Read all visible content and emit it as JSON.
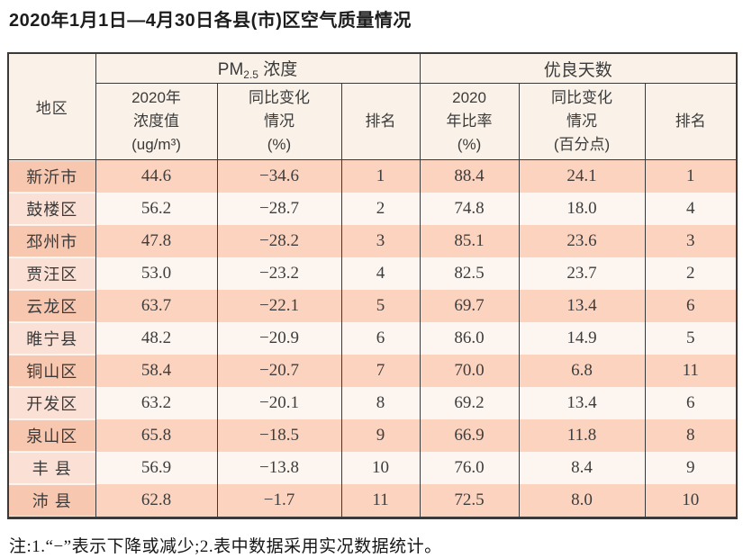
{
  "title": "2020年1月1日—4月30日各县(市)区空气质量情况",
  "footnote": "注:1.“−”表示下降或减少;2.表中数据采用实况数据统计。",
  "colors": {
    "header_bg": "#faf2e8",
    "row_odd_bg": "#fbd3bf",
    "row_odd_region_bg": "#f8c7b0",
    "row_even_bg": "#fdf5ef",
    "row_even_region_bg": "#fbe1d5",
    "border": "#3a3a3a"
  },
  "table": {
    "corner_header": "地区",
    "group1": {
      "prefix": "PM",
      "sub": "2.5",
      "suffix": " 浓度"
    },
    "group2": {
      "label": "优良天数"
    },
    "sub_headers": {
      "pm_value": "2020年\n浓度值\n(ug/m³)",
      "pm_change": "同比变化\n情况\n(%)",
      "pm_rank": "排名",
      "good_ratio": "2020\n年比率\n(%)",
      "good_change": "同比变化\n情况\n(百分点)",
      "good_rank": "排名"
    },
    "columns": [
      "region",
      "pm_value",
      "pm_change",
      "pm_rank",
      "good_ratio",
      "good_change",
      "good_rank"
    ],
    "rows": [
      {
        "region": "新沂市",
        "pm_value": "44.6",
        "pm_change": "−34.6",
        "pm_rank": "1",
        "good_ratio": "88.4",
        "good_change": "24.1",
        "good_rank": "1"
      },
      {
        "region": "鼓楼区",
        "pm_value": "56.2",
        "pm_change": "−28.7",
        "pm_rank": "2",
        "good_ratio": "74.8",
        "good_change": "18.0",
        "good_rank": "4"
      },
      {
        "region": "邳州市",
        "pm_value": "47.8",
        "pm_change": "−28.2",
        "pm_rank": "3",
        "good_ratio": "85.1",
        "good_change": "23.6",
        "good_rank": "3"
      },
      {
        "region": "贾汪区",
        "pm_value": "53.0",
        "pm_change": "−23.2",
        "pm_rank": "4",
        "good_ratio": "82.5",
        "good_change": "23.7",
        "good_rank": "2"
      },
      {
        "region": "云龙区",
        "pm_value": "63.7",
        "pm_change": "−22.1",
        "pm_rank": "5",
        "good_ratio": "69.7",
        "good_change": "13.4",
        "good_rank": "6"
      },
      {
        "region": "睢宁县",
        "pm_value": "48.2",
        "pm_change": "−20.9",
        "pm_rank": "6",
        "good_ratio": "86.0",
        "good_change": "14.9",
        "good_rank": "5"
      },
      {
        "region": "铜山区",
        "pm_value": "58.4",
        "pm_change": "−20.7",
        "pm_rank": "7",
        "good_ratio": "70.0",
        "good_change": "6.8",
        "good_rank": "11"
      },
      {
        "region": "开发区",
        "pm_value": "63.2",
        "pm_change": "−20.1",
        "pm_rank": "8",
        "good_ratio": "69.2",
        "good_change": "13.4",
        "good_rank": "6"
      },
      {
        "region": "泉山区",
        "pm_value": "65.8",
        "pm_change": "−18.5",
        "pm_rank": "9",
        "good_ratio": "66.9",
        "good_change": "11.8",
        "good_rank": "8"
      },
      {
        "region": "丰 县",
        "pm_value": "56.9",
        "pm_change": "−13.8",
        "pm_rank": "10",
        "good_ratio": "76.0",
        "good_change": "8.4",
        "good_rank": "9"
      },
      {
        "region": "沛 县",
        "pm_value": "62.8",
        "pm_change": "−1.7",
        "pm_rank": "11",
        "good_ratio": "72.5",
        "good_change": "8.0",
        "good_rank": "10"
      }
    ]
  }
}
